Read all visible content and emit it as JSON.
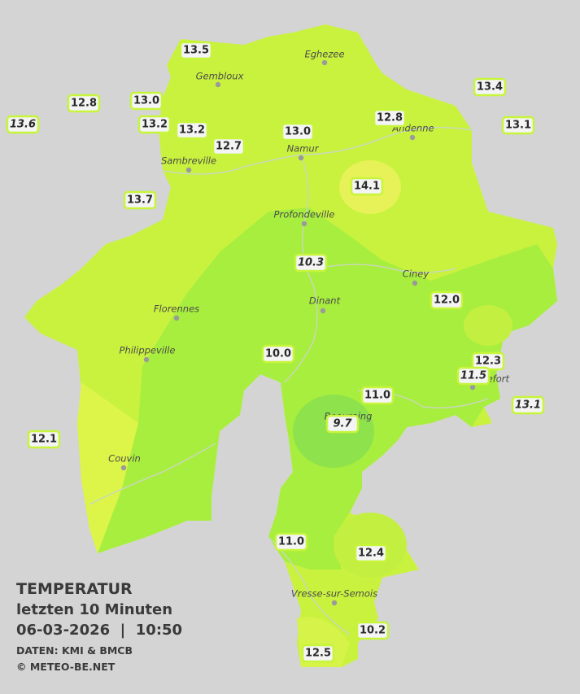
{
  "legend": {
    "title": "TEMPERATUR",
    "period": "letzten 10 Minuten",
    "date_time": "06-03-2026  |  10:50",
    "source": "DATEN: KMI & BMCB",
    "copyright": "© METEO-BE.NET"
  },
  "towns": [
    "Eghezee",
    "Gembloux",
    "Andenne",
    "Namur",
    "Sambreville",
    "Profondeville",
    "Ciney",
    "Dinant",
    "Florennes",
    "Philippeville",
    "Rochefort",
    "Beauraing",
    "Couvin",
    "Vresse-sur-Semois"
  ],
  "stations": [
    {
      "value": "13.5",
      "italic": false
    },
    {
      "value": "12.8",
      "italic": false
    },
    {
      "value": "13.0",
      "italic": false
    },
    {
      "value": "13.6",
      "italic": true
    },
    {
      "value": "13.2",
      "italic": false
    },
    {
      "value": "13.2",
      "italic": false
    },
    {
      "value": "12.7",
      "italic": false
    },
    {
      "value": "13.0",
      "italic": false
    },
    {
      "value": "12.8",
      "italic": false
    },
    {
      "value": "13.4",
      "italic": false
    },
    {
      "value": "13.1",
      "italic": false
    },
    {
      "value": "14.1",
      "italic": false
    },
    {
      "value": "13.7",
      "italic": false
    },
    {
      "value": "10.3",
      "italic": true
    },
    {
      "value": "12.0",
      "italic": false
    },
    {
      "value": "10.0",
      "italic": false
    },
    {
      "value": "12.3",
      "italic": false
    },
    {
      "value": "11.5",
      "italic": true
    },
    {
      "value": "11.0",
      "italic": false
    },
    {
      "value": "13.1",
      "italic": true
    },
    {
      "value": "9.7",
      "italic": true
    },
    {
      "value": "12.1",
      "italic": false
    },
    {
      "value": "11.0",
      "italic": false
    },
    {
      "value": "12.4",
      "italic": false
    },
    {
      "value": "10.2",
      "italic": false
    },
    {
      "value": "12.5",
      "italic": false
    }
  ]
}
